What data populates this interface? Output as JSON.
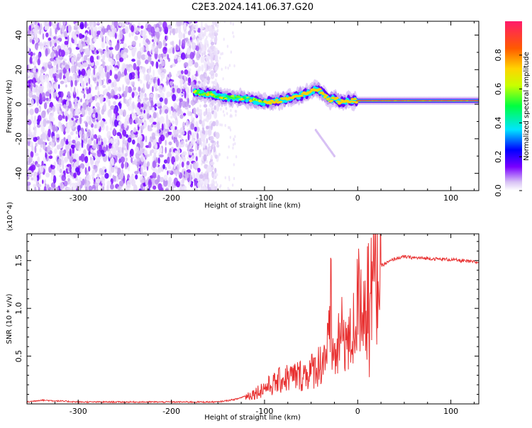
{
  "page": {
    "title": "C2E3.2024.141.06.37.G20"
  },
  "chart_data": [
    {
      "type": "heatmap",
      "title": "C2E3.2024.141.06.37.G20",
      "xlabel": "Height of straight line (km)",
      "ylabel": "Frequency (Hz)",
      "xlim": [
        -355,
        130
      ],
      "ylim": [
        -50,
        48
      ],
      "xticks": [
        -300,
        -200,
        -100,
        0,
        100
      ],
      "yticks": [
        -40,
        -20,
        0,
        20,
        40
      ],
      "colorbar": {
        "label": "Normalized spectral amplitude",
        "range": [
          0,
          1
        ],
        "ticks": [
          0.0,
          0.2,
          0.4,
          0.6,
          0.8
        ],
        "colormap": [
          "#ffffff",
          "#c8a8f0",
          "#7a00ff",
          "#0000ff",
          "#00e5ff",
          "#00ff40",
          "#c8ff00",
          "#ffd400",
          "#ff5a00",
          "#ff1a6a"
        ]
      },
      "ridge": {
        "name": "dominant frequency trace",
        "x": [
          -175,
          -160,
          -140,
          -120,
          -100,
          -85,
          -70,
          -55,
          -45,
          -40,
          -35,
          -30,
          -25,
          -20,
          -10,
          0,
          20,
          60,
          100,
          130
        ],
        "y": [
          7,
          6,
          4,
          3,
          1,
          2,
          4,
          6,
          9,
          8,
          5,
          2,
          4,
          1,
          2,
          2,
          2,
          2,
          2,
          2
        ]
      },
      "noise_region_x": [
        -355,
        -170
      ]
    },
    {
      "type": "line",
      "xlabel": "Height of straight line (km)",
      "ylabel": "SNR (10 * v/v)",
      "scale_label": "(x10^4)",
      "xlim": [
        -355,
        130
      ],
      "ylim": [
        0,
        1.78
      ],
      "xticks": [
        -300,
        -200,
        -100,
        0,
        100
      ],
      "yticks": [
        0.5,
        1.0,
        1.5
      ],
      "ytick_labels": [
        "0.5",
        "1.0",
        "1.5"
      ],
      "series": [
        {
          "color": "#e83030",
          "x": [
            -355,
            -340,
            -300,
            -250,
            -200,
            -150,
            -130,
            -110,
            -100,
            -90,
            -80,
            -70,
            -60,
            -50,
            -40,
            -35,
            -30,
            -25,
            -20,
            -15,
            -10,
            -5,
            0,
            5,
            10,
            15,
            20,
            30,
            40,
            50,
            60,
            80,
            100,
            120,
            130
          ],
          "y": [
            0.02,
            0.04,
            0.02,
            0.02,
            0.02,
            0.02,
            0.05,
            0.12,
            0.18,
            0.22,
            0.28,
            0.3,
            0.32,
            0.36,
            0.45,
            0.55,
            0.7,
            0.5,
            0.65,
            0.85,
            0.62,
            0.8,
            1.1,
            1.25,
            0.9,
            1.35,
            1.42,
            1.47,
            1.52,
            1.54,
            1.53,
            1.52,
            1.51,
            1.49,
            1.48
          ]
        }
      ]
    }
  ]
}
